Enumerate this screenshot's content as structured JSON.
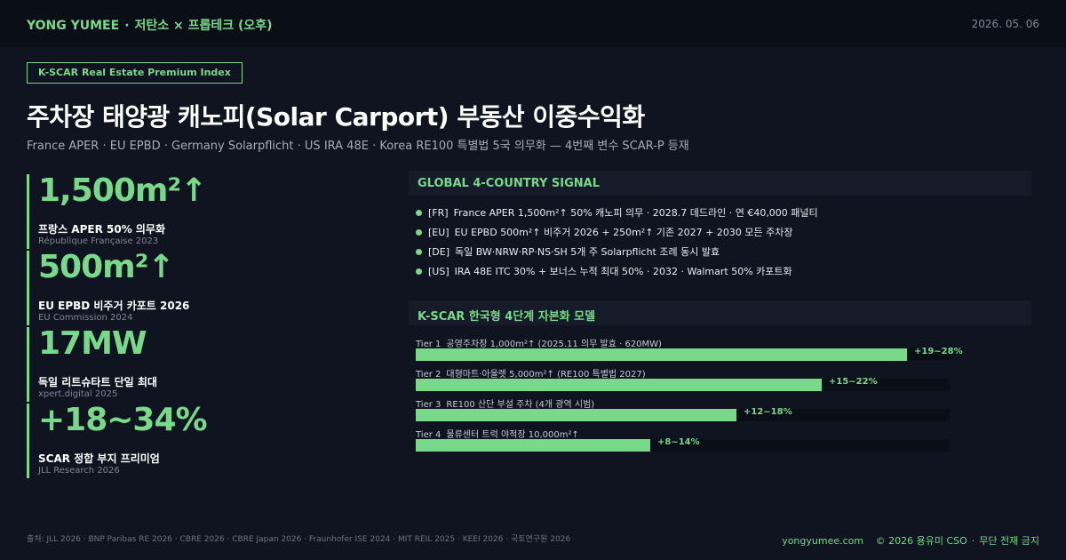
{
  "header": {
    "brand": "YONG YUMEE",
    "subtitle": "저탄소 × 프롭테크 (오후)",
    "date": "2026. 05. 06"
  },
  "badge": "K-SCAR Real Estate Premium Index",
  "title": "주차장 태양광 캐노피(Solar Carport) 부동산 이중수익화",
  "subtitle": "France APER · EU EPBD · Germany Solarpflicht · US IRA 48E · Korea RE100 특별법 5국 의무화 — 4번째 변수 SCAR-P 등재",
  "stats": [
    {
      "value": "1,500m²↑",
      "label": "프랑스 APER 50% 의무화",
      "source": "République Française 2023"
    },
    {
      "value": "500m²↑",
      "label": "EU EPBD 비주거 카포트 2026",
      "source": "EU Commission 2024"
    },
    {
      "value": "17MW",
      "label": "독일 리트슈타트 단일 최대",
      "source": "xpert.digital 2025"
    },
    {
      "value": "+18~34%",
      "label": "SCAR 정합 부지 프리미엄",
      "source": "JLL Research 2026"
    }
  ],
  "signal": {
    "heading": "GLOBAL 4-COUNTRY SIGNAL",
    "items": [
      {
        "code": "[FR]",
        "text": "France APER 1,500m²↑ 50% 캐노피 의무 · 2028.7 데드라인 · 연 €40,000 패널티"
      },
      {
        "code": "[EU]",
        "text": "EU EPBD 500m²↑ 비주거 2026 + 250m²↑ 기존 2027 + 2030 모든 주차장"
      },
      {
        "code": "[DE]",
        "text": "독일 BW·NRW·RP·NS·SH 5개 주 Solarpflicht 조례 동시 발효"
      },
      {
        "code": "[US]",
        "text": "IRA 48E ITC 30% + 보너스 누적 최대 50% · 2032 · Walmart 50% 카포트화"
      }
    ]
  },
  "chart_data": {
    "type": "bar",
    "title": "K-SCAR 한국형 4단계 자본화 모델",
    "orientation": "horizontal",
    "categories": [
      "Tier 1",
      "Tier 2",
      "Tier 3",
      "Tier 4"
    ],
    "descriptions": [
      "공영주차장 1,000m²↑ (2025.11 의무 발효 · 620MW)",
      "대형마트·아울렛 5,000m²↑ (RE100 특별법 2027)",
      "RE100 산단 부설 주차 (4개 광역 시범)",
      "물류센터 트럭 야적장 10,000m²↑"
    ],
    "value_labels": [
      "+19~28%",
      "+15~22%",
      "+12~18%",
      "+8~14%"
    ],
    "values": [
      0.92,
      0.76,
      0.6,
      0.44
    ],
    "xlim": [
      0,
      1
    ],
    "grid": false,
    "legend": "none"
  },
  "footer": {
    "sources": "출처: JLL 2026 · BNP Paribas RE 2026 · CBRE 2026 · CBRE Japan 2026 · Fraunhofer ISE 2024 · MIT REIL 2025 · KEEI 2026 · 국토연구원 2026",
    "site": "yongyumee.com",
    "copyright": "© 2026 용유미 CSO",
    "notice": "무단 전재 금지"
  },
  "colors": {
    "accent": "#79d98a",
    "background": "#0f1420",
    "topbar": "#0a0e17",
    "panel": "#151b28"
  }
}
